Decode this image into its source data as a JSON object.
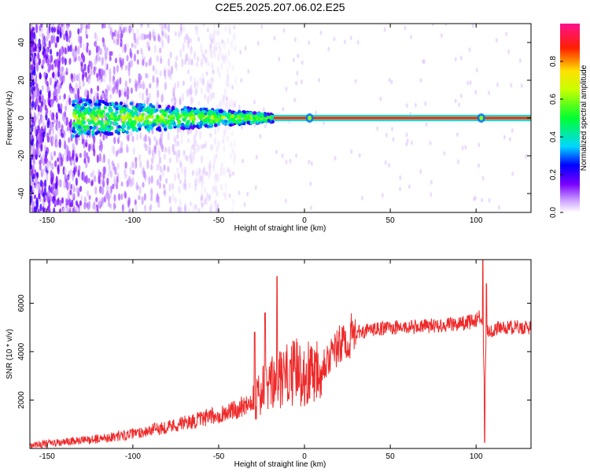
{
  "title": "C2E5.2025.207.06.02.E25",
  "colors": {
    "snr_line": "#ee2a2a",
    "axis": "#000000",
    "background": "#ffffff"
  },
  "chart_data": [
    {
      "type": "heatmap",
      "xlabel": "Height of straight line (km)",
      "ylabel": "Frequency (Hz)",
      "xlim": [
        -160,
        132
      ],
      "ylim": [
        -50,
        50
      ],
      "x_ticks": [
        -150,
        -100,
        -50,
        0,
        50,
        100
      ],
      "y_ticks": [
        -40,
        -20,
        0,
        20,
        40
      ],
      "colorbar": {
        "label": "Normalized spectral amplitude",
        "range": [
          0,
          1
        ],
        "ticks": [
          "0.0",
          "0.2",
          "0.4",
          "0.6",
          "0.8"
        ],
        "colormap": "rainbow",
        "placement": "right"
      },
      "features": {
        "noise_region_x": [
          -160,
          -60
        ],
        "signal_band_frequency_hz": 0,
        "signal_band_start_x": -135,
        "strong_line_start_x": -18,
        "spike_x": [
          3,
          103
        ]
      },
      "grid": false
    },
    {
      "type": "line",
      "xlabel": "Height of straight line (km)",
      "ylabel": "SNR (10 * v/v)",
      "xlim": [
        -160,
        132
      ],
      "ylim": [
        0,
        7800
      ],
      "x_ticks": [
        -150,
        -100,
        -50,
        0,
        50,
        100
      ],
      "y_ticks": [
        2000,
        4000,
        6000
      ],
      "series": [
        {
          "trend_x": [
            -160,
            -140,
            -120,
            -100,
            -80,
            -60,
            -50,
            -40,
            -35,
            -30,
            -25,
            -20,
            -15,
            -10,
            -5,
            0,
            5,
            10,
            15,
            20,
            25,
            30,
            40,
            50,
            60,
            70,
            80,
            90,
            95,
            100,
            102,
            104,
            105,
            106,
            108,
            110,
            115,
            120,
            132
          ],
          "trend_y": [
            150,
            250,
            400,
            600,
            900,
            1200,
            1400,
            1600,
            1800,
            2000,
            2300,
            2600,
            2800,
            3000,
            3200,
            3000,
            3300,
            3500,
            3800,
            4200,
            4500,
            4800,
            4900,
            5000,
            5000,
            5050,
            5100,
            5150,
            5200,
            5300,
            5500,
            5000,
            2000,
            5000,
            4800,
            4900,
            5000,
            5000,
            5000
          ],
          "spikes": [
            {
              "x": -29,
              "y": 4800
            },
            {
              "x": -23,
              "y": 5600
            },
            {
              "x": -16,
              "y": 7100
            },
            {
              "x": 104,
              "y": 7800
            },
            {
              "x": 105,
              "y": 250
            },
            {
              "x": 106,
              "y": 6800
            }
          ]
        }
      ],
      "grid": false
    }
  ]
}
